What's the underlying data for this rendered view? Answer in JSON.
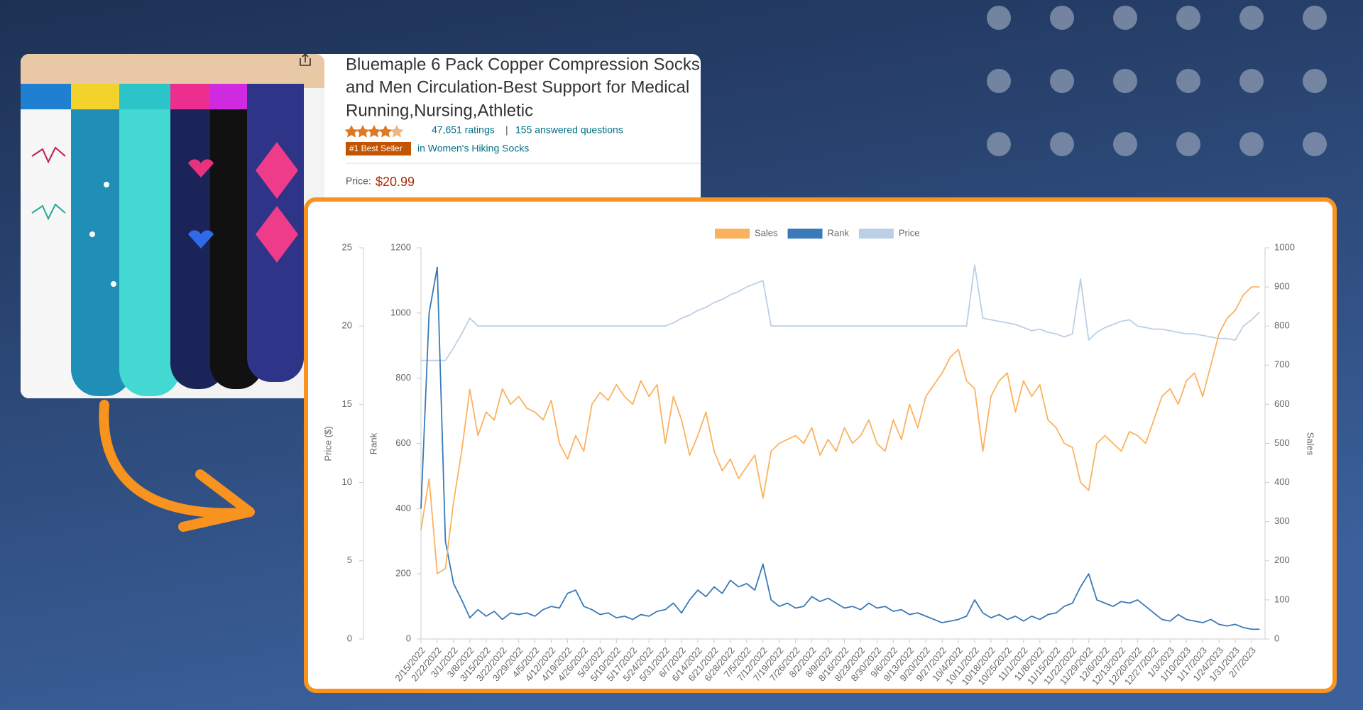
{
  "product": {
    "title_lines": [
      "Bluemaple 6 Pack Copper Compression Socks",
      "and Men Circulation-Best Support for Medical",
      "Running,Nursing,Athletic"
    ],
    "ratings": "47,651 ratings",
    "separator": "|",
    "questions": "155 answered questions",
    "badge": "#1 Best Seller",
    "category": "in Women's Hiking Socks",
    "price_label": "Price:",
    "price": "$20.99"
  },
  "chart_data": {
    "type": "line",
    "legend": "top",
    "grid": false,
    "y_label": "Rank",
    "y2_label": "Sales",
    "y3_label": "Price ($)",
    "ylim": [
      0,
      1200
    ],
    "yticks": [
      0,
      200,
      400,
      600,
      800,
      1000,
      1200
    ],
    "y2lim": [
      0,
      1000
    ],
    "y2ticks": [
      0,
      100,
      200,
      300,
      400,
      500,
      600,
      700,
      800,
      900,
      1000
    ],
    "y3lim": [
      0,
      25
    ],
    "y3ticks": [
      0,
      5,
      10,
      15,
      20,
      25
    ],
    "categories": [
      "2/15/2022",
      null,
      "2/22/2022",
      null,
      "3/1/2022",
      null,
      "3/8/2022",
      null,
      "3/15/2022",
      null,
      "3/22/2022",
      null,
      "3/29/2022",
      null,
      "4/5/2022",
      null,
      "4/12/2022",
      null,
      "4/19/2022",
      null,
      "4/26/2022",
      null,
      "5/3/2022",
      null,
      "5/10/2022",
      null,
      "5/17/2022",
      null,
      "5/24/2022",
      null,
      "5/31/2022",
      null,
      "6/7/2022",
      null,
      "6/14/2022",
      null,
      "6/21/2022",
      null,
      "6/28/2022",
      null,
      "7/5/2022",
      null,
      "7/12/2022",
      null,
      "7/19/2022",
      null,
      "7/26/2022",
      null,
      "8/2/2022",
      null,
      "8/9/2022",
      null,
      "8/16/2022",
      null,
      "8/23/2022",
      null,
      "8/30/2022",
      null,
      "9/6/2022",
      null,
      "9/13/2022",
      null,
      "9/20/2022",
      null,
      "9/27/2022",
      null,
      "10/4/2022",
      null,
      "10/11/2022",
      null,
      "10/18/2022",
      null,
      "10/25/2022",
      null,
      "11/1/2022",
      null,
      "11/8/2022",
      null,
      "11/15/2022",
      null,
      "11/22/2022",
      null,
      "11/29/2022",
      null,
      "12/6/2022",
      null,
      "12/13/2022",
      null,
      "12/20/2022",
      null,
      "12/27/2022",
      null,
      "1/3/2023",
      null,
      "1/10/2023",
      null,
      "1/17/2023",
      null,
      "1/24/2023",
      null,
      "1/31/2023",
      null,
      "2/7/2023",
      null
    ],
    "series": [
      {
        "name": "Sales",
        "color": "#fbb25f",
        "axis": "y2",
        "values": [
          278,
          410,
          167,
          180,
          350,
          480,
          638,
          520,
          580,
          560,
          640,
          600,
          620,
          590,
          580,
          560,
          610,
          500,
          460,
          520,
          480,
          600,
          630,
          610,
          650,
          620,
          600,
          660,
          620,
          650,
          500,
          620,
          560,
          470,
          520,
          580,
          480,
          430,
          460,
          410,
          440,
          470,
          360,
          480,
          500,
          510,
          520,
          500,
          540,
          470,
          510,
          480,
          540,
          500,
          520,
          560,
          500,
          480,
          560,
          510,
          600,
          540,
          620,
          650,
          680,
          720,
          740,
          660,
          640,
          480,
          620,
          660,
          680,
          580,
          660,
          620,
          650,
          560,
          540,
          500,
          490,
          400,
          380,
          500,
          520,
          500,
          480,
          530,
          520,
          500,
          560,
          620,
          640,
          600,
          660,
          680,
          620,
          700,
          780,
          820,
          840,
          880,
          900,
          900
        ]
      },
      {
        "name": "Rank",
        "color": "#3a7ab8",
        "axis": "y",
        "values": [
          400,
          1000,
          1140,
          300,
          170,
          120,
          65,
          90,
          70,
          85,
          60,
          80,
          75,
          80,
          70,
          90,
          100,
          95,
          140,
          150,
          100,
          90,
          75,
          80,
          65,
          70,
          60,
          75,
          70,
          85,
          90,
          110,
          80,
          120,
          150,
          130,
          160,
          140,
          180,
          160,
          170,
          150,
          230,
          120,
          100,
          110,
          95,
          100,
          130,
          115,
          125,
          110,
          95,
          100,
          90,
          110,
          95,
          100,
          85,
          90,
          75,
          80,
          70,
          60,
          50,
          55,
          60,
          70,
          120,
          80,
          65,
          75,
          60,
          70,
          55,
          70,
          60,
          75,
          80,
          100,
          110,
          160,
          200,
          120,
          110,
          100,
          115,
          110,
          120,
          100,
          80,
          60,
          55,
          75,
          60,
          55,
          50,
          60,
          45,
          40,
          45,
          35,
          30,
          30
        ]
      },
      {
        "name": "Price",
        "color": "#bcd0e5",
        "axis": "y3",
        "values": [
          17.8,
          17.8,
          17.8,
          17.8,
          18.6,
          19.5,
          20.5,
          20.0,
          20.0,
          20.0,
          20.0,
          20.0,
          20.0,
          20.0,
          20.0,
          20.0,
          20.0,
          20.0,
          20.0,
          20.0,
          20.0,
          20.0,
          20.0,
          20.0,
          20.0,
          20.0,
          20.0,
          20.0,
          20.0,
          20.0,
          20.0,
          20.2,
          20.5,
          20.7,
          21.0,
          21.2,
          21.5,
          21.7,
          22.0,
          22.2,
          22.5,
          22.7,
          22.9,
          20.0,
          20.0,
          20.0,
          20.0,
          20.0,
          20.0,
          20.0,
          20.0,
          20.0,
          20.0,
          20.0,
          20.0,
          20.0,
          20.0,
          20.0,
          20.0,
          20.0,
          20.0,
          20.0,
          20.0,
          20.0,
          20.0,
          20.0,
          20.0,
          20.0,
          23.9,
          20.5,
          20.4,
          20.3,
          20.2,
          20.1,
          19.9,
          19.7,
          19.8,
          19.6,
          19.5,
          19.3,
          19.5,
          23.0,
          19.1,
          19.6,
          19.9,
          20.1,
          20.3,
          20.4,
          20.0,
          19.9,
          19.8,
          19.8,
          19.7,
          19.6,
          19.5,
          19.5,
          19.4,
          19.3,
          19.2,
          19.2,
          19.1,
          20.0,
          20.4,
          20.9
        ]
      }
    ]
  }
}
